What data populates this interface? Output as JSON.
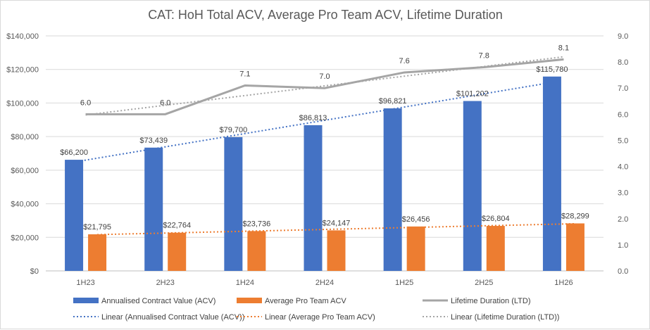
{
  "chart_data": {
    "type": "bar",
    "title": "CAT: HoH Total ACV, Average Pro Team ACV, Lifetime Duration",
    "categories": [
      "1H23",
      "2H23",
      "1H24",
      "2H24",
      "1H25",
      "2H25",
      "1H26"
    ],
    "y_left": {
      "min": 0,
      "max": 140000,
      "step": 20000,
      "tick_labels": [
        "$0",
        "$20,000",
        "$40,000",
        "$60,000",
        "$80,000",
        "$100,000",
        "$120,000",
        "$140,000"
      ]
    },
    "y_right": {
      "min": 0,
      "max": 9,
      "step": 1,
      "tick_labels": [
        "0.0",
        "1.0",
        "2.0",
        "3.0",
        "4.0",
        "5.0",
        "6.0",
        "7.0",
        "8.0",
        "9.0"
      ]
    },
    "grid": true,
    "legend_position": "bottom",
    "series": [
      {
        "name": "Annualised Contract Value (ACV)",
        "kind": "bar",
        "axis": "left",
        "color": "#4472c4",
        "values": [
          66200,
          73439,
          79700,
          86813,
          96821,
          101202,
          115780
        ],
        "labels": [
          "$66,200",
          "$73,439",
          "$79,700",
          "$86,813",
          "$96,821",
          "$101,202",
          "$115,780"
        ]
      },
      {
        "name": "Average Pro Team ACV",
        "kind": "bar",
        "axis": "left",
        "color": "#ed7d31",
        "values": [
          21795,
          22764,
          23736,
          24147,
          26456,
          26804,
          28299
        ],
        "labels": [
          "$21,795",
          "$22,764",
          "$23,736",
          "$24,147",
          "$26,456",
          "$26,804",
          "$28,299"
        ]
      },
      {
        "name": "Lifetime Duration (LTD)",
        "kind": "line",
        "axis": "right",
        "color": "#a5a5a5",
        "values": [
          6.0,
          6.0,
          7.1,
          7.0,
          7.6,
          7.8,
          8.1
        ],
        "labels": [
          "6.0",
          "6.0",
          "7.1",
          "7.0",
          "7.6",
          "7.8",
          "8.1"
        ]
      }
    ],
    "trendlines": [
      {
        "name": "Linear (Annualised Contract Value (ACV))",
        "of": 0,
        "color": "#4472c4"
      },
      {
        "name": "Linear (Average Pro Team ACV)",
        "of": 1,
        "color": "#ed7d31"
      },
      {
        "name": "Linear (Lifetime Duration (LTD))",
        "of": 2,
        "color": "#a5a5a5"
      }
    ]
  }
}
